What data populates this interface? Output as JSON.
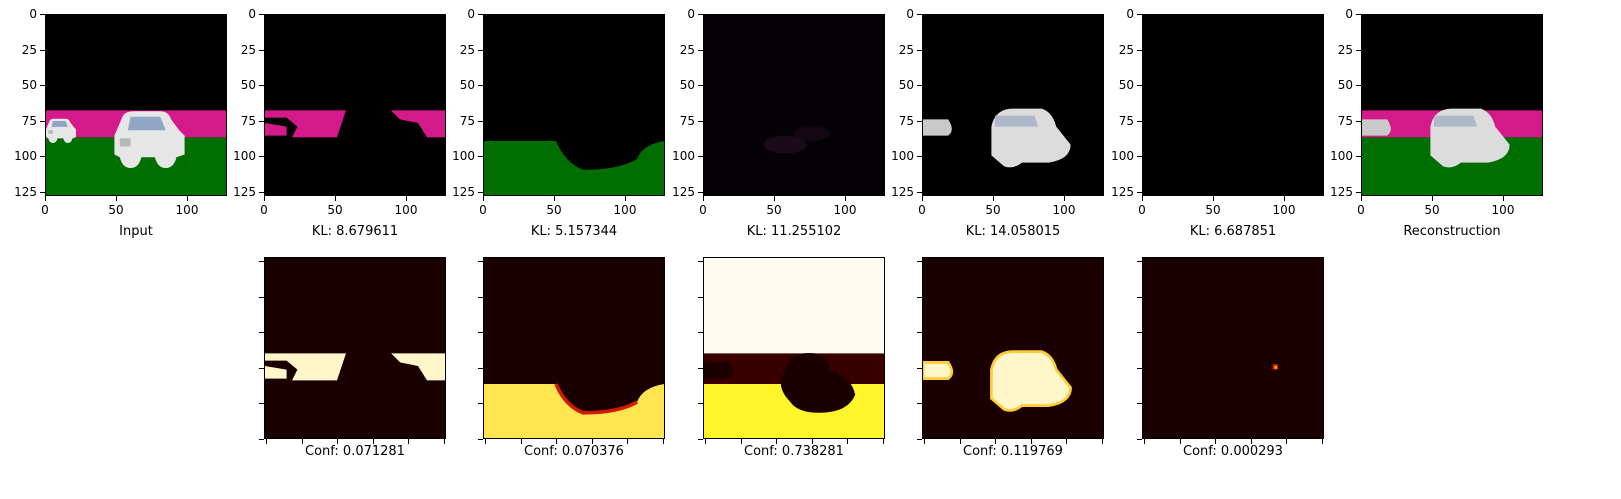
{
  "figure": {
    "yticks": [
      "0",
      "25",
      "50",
      "75",
      "100",
      "125"
    ],
    "xticks": [
      "0",
      "50",
      "100"
    ],
    "top_row": [
      {
        "caption": "Input",
        "content": "full scene: magenta band, green ground, white car, small white car"
      },
      {
        "caption": "KL: 8.679611",
        "content": "magenta band partial"
      },
      {
        "caption": "KL: 5.157344",
        "content": "green ground with car shadow"
      },
      {
        "caption": "KL: 11.255102",
        "content": "mostly black faint purple"
      },
      {
        "caption": "KL: 14.058015",
        "content": "white cars only"
      },
      {
        "caption": "KL: 6.687851",
        "content": "black"
      },
      {
        "caption": "Reconstruction",
        "content": "reconstructed full scene"
      }
    ],
    "bottom_row": [
      {
        "caption": "Conf: 0.071281"
      },
      {
        "caption": "Conf: 0.070376"
      },
      {
        "caption": "Conf: 0.738281"
      },
      {
        "caption": "Conf: 0.119769"
      },
      {
        "caption": "Conf: 0.000293"
      }
    ]
  },
  "colors": {
    "black": "#000000",
    "magenta": "#d4198a",
    "green": "#006e00",
    "car_white": "#e6e6e6",
    "heat_dark": "#1a0000",
    "heat_bright": "#fff6c9",
    "heat_yellow": "#fff52a",
    "heat_red": "#d21a00"
  }
}
